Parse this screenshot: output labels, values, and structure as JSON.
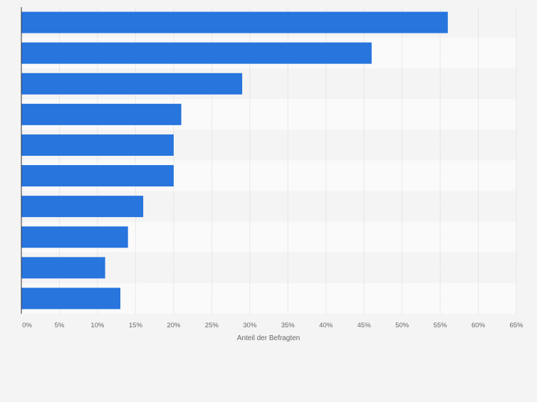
{
  "chart_data": {
    "type": "bar",
    "orientation": "horizontal",
    "categories": [
      "",
      "",
      "",
      "",
      "",
      "",
      "",
      "",
      "",
      ""
    ],
    "values": [
      56,
      46,
      29,
      21,
      20,
      20,
      16,
      14,
      11,
      13
    ],
    "xlabel": "Anteil der Befragten",
    "ylabel": "",
    "xlim": [
      0,
      65
    ],
    "x_ticks": [
      "0%",
      "5%",
      "10%",
      "15%",
      "20%",
      "25%",
      "30%",
      "35%",
      "40%",
      "45%",
      "50%",
      "55%",
      "60%",
      "65%"
    ],
    "grid": true,
    "bar_color": "#2775dd",
    "band_colors": [
      "#f4f4f4",
      "#fafafa"
    ]
  }
}
